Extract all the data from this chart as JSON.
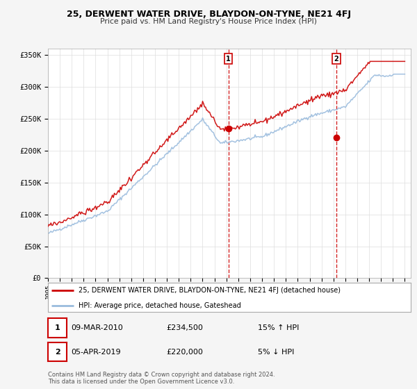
{
  "title": "25, DERWENT WATER DRIVE, BLAYDON-ON-TYNE, NE21 4FJ",
  "subtitle": "Price paid vs. HM Land Registry's House Price Index (HPI)",
  "ylabel_ticks": [
    "£0",
    "£50K",
    "£100K",
    "£150K",
    "£200K",
    "£250K",
    "£300K",
    "£350K"
  ],
  "ytick_values": [
    0,
    50000,
    100000,
    150000,
    200000,
    250000,
    300000,
    350000
  ],
  "ylim": [
    0,
    360000
  ],
  "xlim_start": 1995,
  "xlim_end": 2025.5,
  "xticks": [
    1995,
    1996,
    1997,
    1998,
    1999,
    2000,
    2001,
    2002,
    2003,
    2004,
    2005,
    2006,
    2007,
    2008,
    2009,
    2010,
    2011,
    2012,
    2013,
    2014,
    2015,
    2016,
    2017,
    2018,
    2019,
    2020,
    2021,
    2022,
    2023,
    2024,
    2025
  ],
  "sale1_date": 2010.17,
  "sale1_price": 234500,
  "sale1_label": "1",
  "sale2_date": 2019.25,
  "sale2_price": 220000,
  "sale2_label": "2",
  "line_red_color": "#cc0000",
  "line_blue_color": "#99bbdd",
  "vline_color": "#cc0000",
  "legend_label_red": "25, DERWENT WATER DRIVE, BLAYDON-ON-TYNE, NE21 4FJ (detached house)",
  "legend_label_blue": "HPI: Average price, detached house, Gateshead",
  "table_row1": [
    "1",
    "09-MAR-2010",
    "£234,500",
    "15% ↑ HPI"
  ],
  "table_row2": [
    "2",
    "05-APR-2019",
    "£220,000",
    "5% ↓ HPI"
  ],
  "footer": "Contains HM Land Registry data © Crown copyright and database right 2024.\nThis data is licensed under the Open Government Licence v3.0.",
  "plot_bg_color": "#ffffff",
  "grid_color": "#dddddd",
  "fig_bg_color": "#f5f5f5"
}
